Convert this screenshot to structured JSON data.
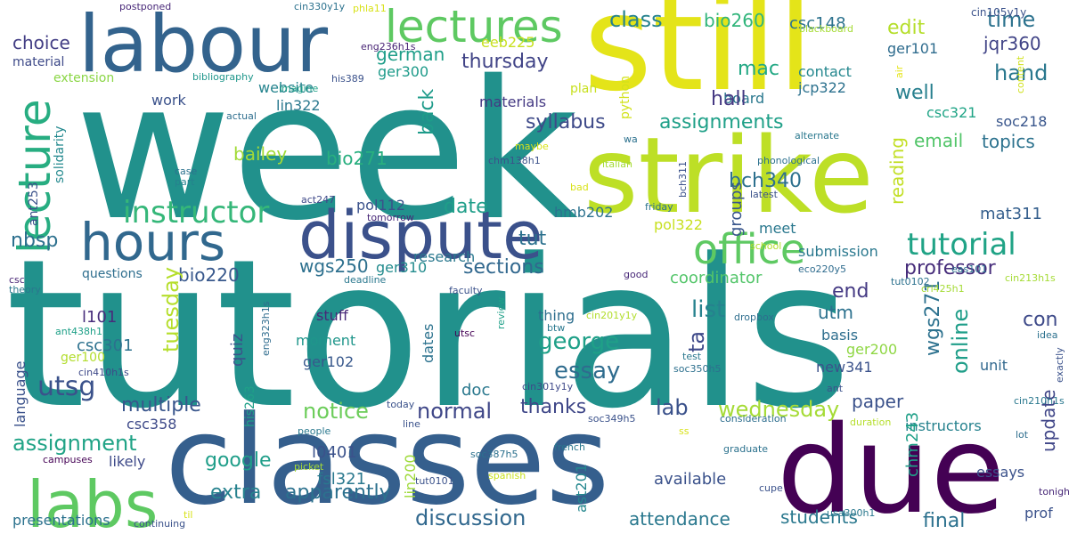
{
  "words": [
    {
      "text": "tutorials",
      "color": "#21918c"
    },
    {
      "text": "week",
      "color": "#21918c"
    },
    {
      "text": "still",
      "color": "#e4e419"
    },
    {
      "text": "strike",
      "color": "#bddf26"
    },
    {
      "text": "classes",
      "color": "#355f8d"
    },
    {
      "text": "due",
      "color": "#440154"
    },
    {
      "text": "labour",
      "color": "#33638d"
    },
    {
      "text": "dispute",
      "color": "#3b518b"
    },
    {
      "text": "hours",
      "color": "#31688e"
    },
    {
      "text": "lectures",
      "color": "#5ec962"
    },
    {
      "text": "labs",
      "color": "#5ec962"
    },
    {
      "text": "lecture",
      "color": "#27ad81"
    },
    {
      "text": "office",
      "color": "#5ec962"
    },
    {
      "text": "instructor",
      "color": "#35b779"
    },
    {
      "text": "tutorial",
      "color": "#20a386"
    },
    {
      "text": "professor",
      "color": "#472d7b"
    },
    {
      "text": "online",
      "color": "#1f9e89"
    },
    {
      "text": "class",
      "color": "#26828e"
    },
    {
      "text": "bio260",
      "color": "#31b57b"
    },
    {
      "text": "csc148",
      "color": "#2c728e"
    },
    {
      "text": "time",
      "color": "#2c728e"
    },
    {
      "text": "jqr360",
      "color": "#414487"
    },
    {
      "text": "hand",
      "color": "#2a788e"
    },
    {
      "text": "well",
      "color": "#277f8e"
    },
    {
      "text": "mac",
      "color": "#22a884"
    },
    {
      "text": "edit",
      "color": "#b5de2b"
    },
    {
      "text": "ger101",
      "color": "#2f6c8e"
    },
    {
      "text": "cin105y1y",
      "color": "#3b528b"
    },
    {
      "text": "contact",
      "color": "#24878e"
    },
    {
      "text": "jcp322",
      "color": "#2c718e"
    },
    {
      "text": "csc321",
      "color": "#20a486"
    },
    {
      "text": "soc218",
      "color": "#39568c"
    },
    {
      "text": "topics",
      "color": "#2c728e"
    },
    {
      "text": "email",
      "color": "#52c569"
    },
    {
      "text": "reading",
      "color": "#c2df23"
    },
    {
      "text": "mat311",
      "color": "#355f8d"
    },
    {
      "text": "bch340",
      "color": "#2d708e"
    },
    {
      "text": "assignments",
      "color": "#1fa088"
    },
    {
      "text": "syllabus",
      "color": "#3e4a89"
    },
    {
      "text": "thursday",
      "color": "#414487"
    },
    {
      "text": "german",
      "color": "#1f9e89"
    },
    {
      "text": "eeb225",
      "color": "#c8e020"
    },
    {
      "text": "ger300",
      "color": "#1e9b8a"
    },
    {
      "text": "lin322",
      "color": "#2a788e"
    },
    {
      "text": "website",
      "color": "#25848e"
    },
    {
      "text": "choice",
      "color": "#433e85"
    },
    {
      "text": "material",
      "color": "#3e4a89"
    },
    {
      "text": "postponed",
      "color": "#482878"
    },
    {
      "text": "cin330y1y",
      "color": "#2c728e"
    },
    {
      "text": "phla11",
      "color": "#d8e219"
    },
    {
      "text": "eng236h1s",
      "color": "#482475"
    },
    {
      "text": "board",
      "color": "#2a788e"
    },
    {
      "text": "hall",
      "color": "#453882"
    },
    {
      "text": "blackboard",
      "color": "#a5db36"
    },
    {
      "text": "air",
      "color": "#e5e419"
    },
    {
      "text": "content",
      "color": "#d0e11c"
    },
    {
      "text": "extension",
      "color": "#8bd646"
    },
    {
      "text": "work",
      "color": "#3b528b"
    },
    {
      "text": "bibliography",
      "color": "#1f968b"
    },
    {
      "text": "his389",
      "color": "#3b528b"
    },
    {
      "text": "imagine",
      "color": "#1fa188"
    },
    {
      "text": "materials",
      "color": "#443983"
    },
    {
      "text": "plan",
      "color": "#c8e020"
    },
    {
      "text": "python",
      "color": "#d2e21b"
    },
    {
      "text": "back",
      "color": "#1e9b8a"
    },
    {
      "text": "actual",
      "color": "#2e6e8e"
    },
    {
      "text": "solidarity",
      "color": "#23898e"
    },
    {
      "text": "ant253",
      "color": "#3b528b"
    },
    {
      "text": "csc",
      "color": "#482475"
    },
    {
      "text": "theory",
      "color": "#2a788e"
    },
    {
      "text": "bailey",
      "color": "#a2da37"
    },
    {
      "text": "bio271",
      "color": "#29af7f"
    },
    {
      "text": "date",
      "color": "#1f9e89"
    },
    {
      "text": "nbsp",
      "color": "#2d708e"
    },
    {
      "text": "bio220",
      "color": "#38588c"
    },
    {
      "text": "wgs250",
      "color": "#2d708e"
    },
    {
      "text": "ger310",
      "color": "#228b8d"
    },
    {
      "text": "research",
      "color": "#2a788e"
    },
    {
      "text": "tut",
      "color": "#2c718e"
    },
    {
      "text": "sections",
      "color": "#31688e"
    },
    {
      "text": "questions",
      "color": "#2e6e8e"
    },
    {
      "text": "tuesday",
      "color": "#b5de2b"
    },
    {
      "text": "quiz",
      "color": "#3b528b"
    },
    {
      "text": "l101",
      "color": "#472d7b"
    },
    {
      "text": "language",
      "color": "#3b528b"
    },
    {
      "text": "ant438h1",
      "color": "#1fa088"
    },
    {
      "text": "csc301",
      "color": "#2c718e"
    },
    {
      "text": "ger100",
      "color": "#b2dd2d"
    },
    {
      "text": "cin410h1s",
      "color": "#3e4989"
    },
    {
      "text": "moment",
      "color": "#1f968b"
    },
    {
      "text": "stuff",
      "color": "#482878"
    },
    {
      "text": "ger102",
      "color": "#38588c"
    },
    {
      "text": "hmb202",
      "color": "#2c728e"
    },
    {
      "text": "pol112",
      "color": "#3b528b"
    },
    {
      "text": "tomorrow",
      "color": "#482878"
    },
    {
      "text": "act247",
      "color": "#3e4989"
    },
    {
      "text": "meet",
      "color": "#2a788e"
    },
    {
      "text": "groups",
      "color": "#39568c"
    },
    {
      "text": "submission",
      "color": "#2a788e"
    },
    {
      "text": "coordinator",
      "color": "#52c569"
    },
    {
      "text": "george",
      "color": "#1fa088"
    },
    {
      "text": "essay",
      "color": "#2f6c8e"
    },
    {
      "text": "ta",
      "color": "#3e4989"
    },
    {
      "text": "list",
      "color": "#26828e"
    },
    {
      "text": "utm",
      "color": "#2c718e"
    },
    {
      "text": "end",
      "color": "#443983"
    },
    {
      "text": "wgs271",
      "color": "#2c718e"
    },
    {
      "text": "con",
      "color": "#3e4a89"
    },
    {
      "text": "basis",
      "color": "#2e6e8e"
    },
    {
      "text": "ger200",
      "color": "#8fd744"
    },
    {
      "text": "new341",
      "color": "#3b528b"
    },
    {
      "text": "unit",
      "color": "#31688e"
    },
    {
      "text": "paper",
      "color": "#3b528b"
    },
    {
      "text": "update",
      "color": "#404688"
    },
    {
      "text": "utsg",
      "color": "#3b528b"
    },
    {
      "text": "multiple",
      "color": "#39568c"
    },
    {
      "text": "csc358",
      "color": "#3e4a89"
    },
    {
      "text": "notice",
      "color": "#6ccd5a"
    },
    {
      "text": "normal",
      "color": "#3f4788"
    },
    {
      "text": "thanks",
      "color": "#3f4788"
    },
    {
      "text": "lab",
      "color": "#3b528b"
    },
    {
      "text": "wednesday",
      "color": "#a5db36"
    },
    {
      "text": "doc",
      "color": "#2a788e"
    },
    {
      "text": "assignment",
      "color": "#20a386"
    },
    {
      "text": "likely",
      "color": "#3e4a89"
    },
    {
      "text": "google",
      "color": "#1f9e89"
    },
    {
      "text": "l0401",
      "color": "#3b528b"
    },
    {
      "text": "fsl321",
      "color": "#2a788e"
    },
    {
      "text": "extra",
      "color": "#26828e"
    },
    {
      "text": "apparently",
      "color": "#2c718e"
    },
    {
      "text": "presentations",
      "color": "#2c728e"
    },
    {
      "text": "discussion",
      "color": "#31688e"
    },
    {
      "text": "attendance",
      "color": "#2a788e"
    },
    {
      "text": "students",
      "color": "#2a788e"
    },
    {
      "text": "final",
      "color": "#2c718e"
    },
    {
      "text": "prof",
      "color": "#3b528b"
    },
    {
      "text": "instructors",
      "color": "#26828e"
    },
    {
      "text": "essays",
      "color": "#3b528b"
    },
    {
      "text": "available",
      "color": "#3b528b"
    },
    {
      "text": "chm243",
      "color": "#1fa088"
    },
    {
      "text": "his263",
      "color": "#1fa088"
    },
    {
      "text": "lin200",
      "color": "#9fda3a"
    },
    {
      "text": "ast201",
      "color": "#24878e"
    },
    {
      "text": "dates",
      "color": "#2c728e"
    },
    {
      "text": "eng323h1s",
      "color": "#2f6c8e"
    },
    {
      "text": "utsc",
      "color": "#440154"
    },
    {
      "text": "review",
      "color": "#1fa088"
    },
    {
      "text": "btw",
      "color": "#2a788e"
    },
    {
      "text": "soc350h5",
      "color": "#2d708e"
    },
    {
      "text": "test",
      "color": "#2a788e"
    },
    {
      "text": "thing",
      "color": "#2e6e8e"
    },
    {
      "text": "cin201y1y",
      "color": "#b2dd2d"
    },
    {
      "text": "dropbox",
      "color": "#2e6e8e"
    },
    {
      "text": "cin301y1y",
      "color": "#3e4989"
    },
    {
      "text": "soc349h5",
      "color": "#3b528b"
    },
    {
      "text": "consideration",
      "color": "#2e6e8e"
    },
    {
      "text": "cupe",
      "color": "#3b528b"
    },
    {
      "text": "graduate",
      "color": "#2c728e"
    },
    {
      "text": "tonight",
      "color": "#482878"
    },
    {
      "text": "lot",
      "color": "#2e6e8e"
    },
    {
      "text": "exactly",
      "color": "#3b528b"
    },
    {
      "text": "idea",
      "color": "#2c718e"
    },
    {
      "text": "cin210h1s",
      "color": "#2a788e"
    },
    {
      "text": "duration",
      "color": "#b5de2b"
    },
    {
      "text": "ant",
      "color": "#3b528b"
    },
    {
      "text": "cin213h1s",
      "color": "#a5db36"
    },
    {
      "text": "cri425h1",
      "color": "#a5db36"
    },
    {
      "text": "tut0102",
      "color": "#2c718e"
    },
    {
      "text": "eco220y5",
      "color": "#2f6c8e"
    },
    {
      "text": "good",
      "color": "#482878"
    },
    {
      "text": "friday",
      "color": "#2c718e"
    },
    {
      "text": "school",
      "color": "#b5de2b"
    },
    {
      "text": "pol322",
      "color": "#c8e020"
    },
    {
      "text": "latest",
      "color": "#3b528b"
    },
    {
      "text": "eas101",
      "color": "#2c718e"
    },
    {
      "text": "phonological",
      "color": "#2c718e"
    },
    {
      "text": "bch311",
      "color": "#3b528b"
    },
    {
      "text": "alternate",
      "color": "#2a788e"
    },
    {
      "text": "italian",
      "color": "#a5db36"
    },
    {
      "text": "bad",
      "color": "#d8e219"
    },
    {
      "text": "maybe",
      "color": "#d8e219"
    },
    {
      "text": "chm138h1",
      "color": "#3b528b"
    },
    {
      "text": "wa",
      "color": "#2c718e"
    },
    {
      "text": "case",
      "color": "#2c728e"
    },
    {
      "text": "part",
      "color": "#26828e"
    },
    {
      "text": "deadline",
      "color": "#2a788e"
    },
    {
      "text": "faculty",
      "color": "#3b528b"
    },
    {
      "text": "today",
      "color": "#3b528b"
    },
    {
      "text": "line",
      "color": "#3b528b"
    },
    {
      "text": "people",
      "color": "#2a788e"
    },
    {
      "text": "campuses",
      "color": "#440154"
    },
    {
      "text": "picket",
      "color": "#a5db36"
    },
    {
      "text": "continuing",
      "color": "#3b528b"
    },
    {
      "text": "til",
      "color": "#d8e219"
    },
    {
      "text": "french",
      "color": "#2a788e"
    },
    {
      "text": "spanish",
      "color": "#c8e020"
    },
    {
      "text": "soc387h5",
      "color": "#2c718e"
    },
    {
      "text": "tut0101",
      "color": "#3b528b"
    },
    {
      "text": "usa300h1",
      "color": "#2a788e"
    },
    {
      "text": "ss",
      "color": "#d8e219"
    }
  ]
}
